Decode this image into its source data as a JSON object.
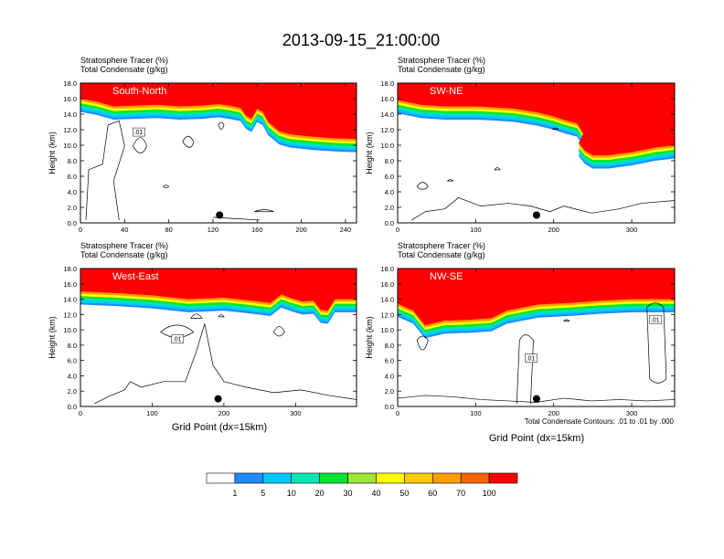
{
  "figure_title": "2013-09-15_21:00:00",
  "ylabel": "Height (km)",
  "xlabel": "Grid Point (dx=15km)",
  "contour_note": "Total Condensate Contours: .01 to .01 by .000",
  "colorbar": {
    "levels": [
      "1",
      "5",
      "10",
      "20",
      "30",
      "40",
      "50",
      "60",
      "70",
      "100"
    ],
    "colors": [
      "#ffffff",
      "#1e8cff",
      "#00c8ff",
      "#00e6b4",
      "#00e632",
      "#a0e632",
      "#ffff00",
      "#ffc800",
      "#ffa000",
      "#ff6400",
      "#ff0000"
    ]
  },
  "chart_data": [
    {
      "type": "heatmap",
      "panel": "South-North",
      "subtitle_1": "Stratosphere Tracer   (%)",
      "subtitle_2": "Total Condensate   (g/kg)",
      "xlim": [
        0,
        250
      ],
      "ylim": [
        0,
        18
      ],
      "xticks": [
        "0",
        "40",
        "80",
        "120",
        "160",
        "200",
        "240"
      ],
      "yticks": [
        "0.0",
        "2.0",
        "4.0",
        "6.0",
        "8.0",
        "10.0",
        "12.0",
        "14.0",
        "16.0",
        "18.0"
      ],
      "show_xlabel": false,
      "contour_label": ".01",
      "marker": [
        126,
        1.0
      ],
      "tracer_boundary": [
        [
          0,
          16.0
        ],
        [
          15,
          15.6
        ],
        [
          30,
          15.0
        ],
        [
          50,
          15.1
        ],
        [
          70,
          15.2
        ],
        [
          90,
          15.0
        ],
        [
          110,
          15.1
        ],
        [
          125,
          15.3
        ],
        [
          135,
          15.1
        ],
        [
          145,
          14.8
        ],
        [
          150,
          13.8
        ],
        [
          155,
          13.4
        ],
        [
          160,
          14.7
        ],
        [
          165,
          14.3
        ],
        [
          170,
          13.0
        ],
        [
          180,
          11.8
        ],
        [
          190,
          11.4
        ],
        [
          210,
          11.1
        ],
        [
          230,
          10.9
        ],
        [
          250,
          10.8
        ]
      ]
    },
    {
      "type": "heatmap",
      "panel": "SW-NE",
      "subtitle_1": "Stratosphere Tracer   (%)",
      "subtitle_2": "Total Condensate   (g/kg)",
      "xlim": [
        0,
        355
      ],
      "ylim": [
        0,
        18
      ],
      "xticks": [
        "0",
        "100",
        "200",
        "300"
      ],
      "yticks": [
        "0.0",
        "2.0",
        "4.0",
        "6.0",
        "8.0",
        "10.0",
        "12.0",
        "14.0",
        "16.0",
        "18.0"
      ],
      "show_xlabel": false,
      "contour_label": "",
      "marker": [
        178,
        1.0
      ],
      "tracer_boundary": [
        [
          0,
          15.8
        ],
        [
          30,
          15.2
        ],
        [
          60,
          15.0
        ],
        [
          100,
          15.0
        ],
        [
          120,
          14.9
        ],
        [
          150,
          14.7
        ],
        [
          180,
          14.2
        ],
        [
          200,
          13.7
        ],
        [
          215,
          13.2
        ],
        [
          230,
          12.8
        ],
        [
          238,
          11.5
        ],
        [
          232,
          10.3
        ],
        [
          240,
          9.3
        ],
        [
          250,
          8.7
        ],
        [
          270,
          8.7
        ],
        [
          300,
          9.1
        ],
        [
          330,
          9.7
        ],
        [
          355,
          10.0
        ]
      ]
    },
    {
      "type": "heatmap",
      "panel": "West-East",
      "subtitle_1": "Stratosphere Tracer   (%)",
      "subtitle_2": "Total Condensate   (g/kg)",
      "xlim": [
        0,
        385
      ],
      "ylim": [
        0,
        18
      ],
      "xticks": [
        "0",
        "100",
        "200",
        "300"
      ],
      "yticks": [
        "0.0",
        "2.0",
        "4.0",
        "6.0",
        "8.0",
        "10.0",
        "12.0",
        "14.0",
        "16.0",
        "18.0"
      ],
      "show_xlabel": true,
      "contour_label": ".01",
      "marker": [
        192,
        1.0
      ],
      "tracer_boundary": [
        [
          0,
          15.0
        ],
        [
          50,
          14.8
        ],
        [
          100,
          14.5
        ],
        [
          150,
          14.0
        ],
        [
          200,
          14.2
        ],
        [
          240,
          13.8
        ],
        [
          265,
          13.5
        ],
        [
          280,
          14.6
        ],
        [
          295,
          14.1
        ],
        [
          310,
          13.7
        ],
        [
          325,
          13.8
        ],
        [
          335,
          12.6
        ],
        [
          345,
          12.5
        ],
        [
          355,
          14.0
        ],
        [
          385,
          14.0
        ]
      ]
    },
    {
      "type": "heatmap",
      "panel": "NW-SE",
      "subtitle_1": "Stratosphere Tracer   (%)",
      "subtitle_2": "Total Condensate   (g/kg)",
      "xlim": [
        0,
        355
      ],
      "ylim": [
        0,
        18
      ],
      "xticks": [
        "0",
        "100",
        "200",
        "300"
      ],
      "yticks": [
        "0.0",
        "2.0",
        "4.0",
        "6.0",
        "8.0",
        "10.0",
        "12.0",
        "14.0",
        "16.0",
        "18.0"
      ],
      "show_xlabel": true,
      "contour_label": ".01",
      "contour_label_2": ".01",
      "marker": [
        178,
        1.0
      ],
      "tracer_boundary": [
        [
          0,
          13.4
        ],
        [
          20,
          12.5
        ],
        [
          35,
          10.6
        ],
        [
          60,
          11.2
        ],
        [
          90,
          11.3
        ],
        [
          120,
          11.5
        ],
        [
          140,
          12.5
        ],
        [
          180,
          13.3
        ],
        [
          220,
          13.5
        ],
        [
          260,
          13.8
        ],
        [
          300,
          14.0
        ],
        [
          355,
          14.0
        ]
      ]
    }
  ]
}
